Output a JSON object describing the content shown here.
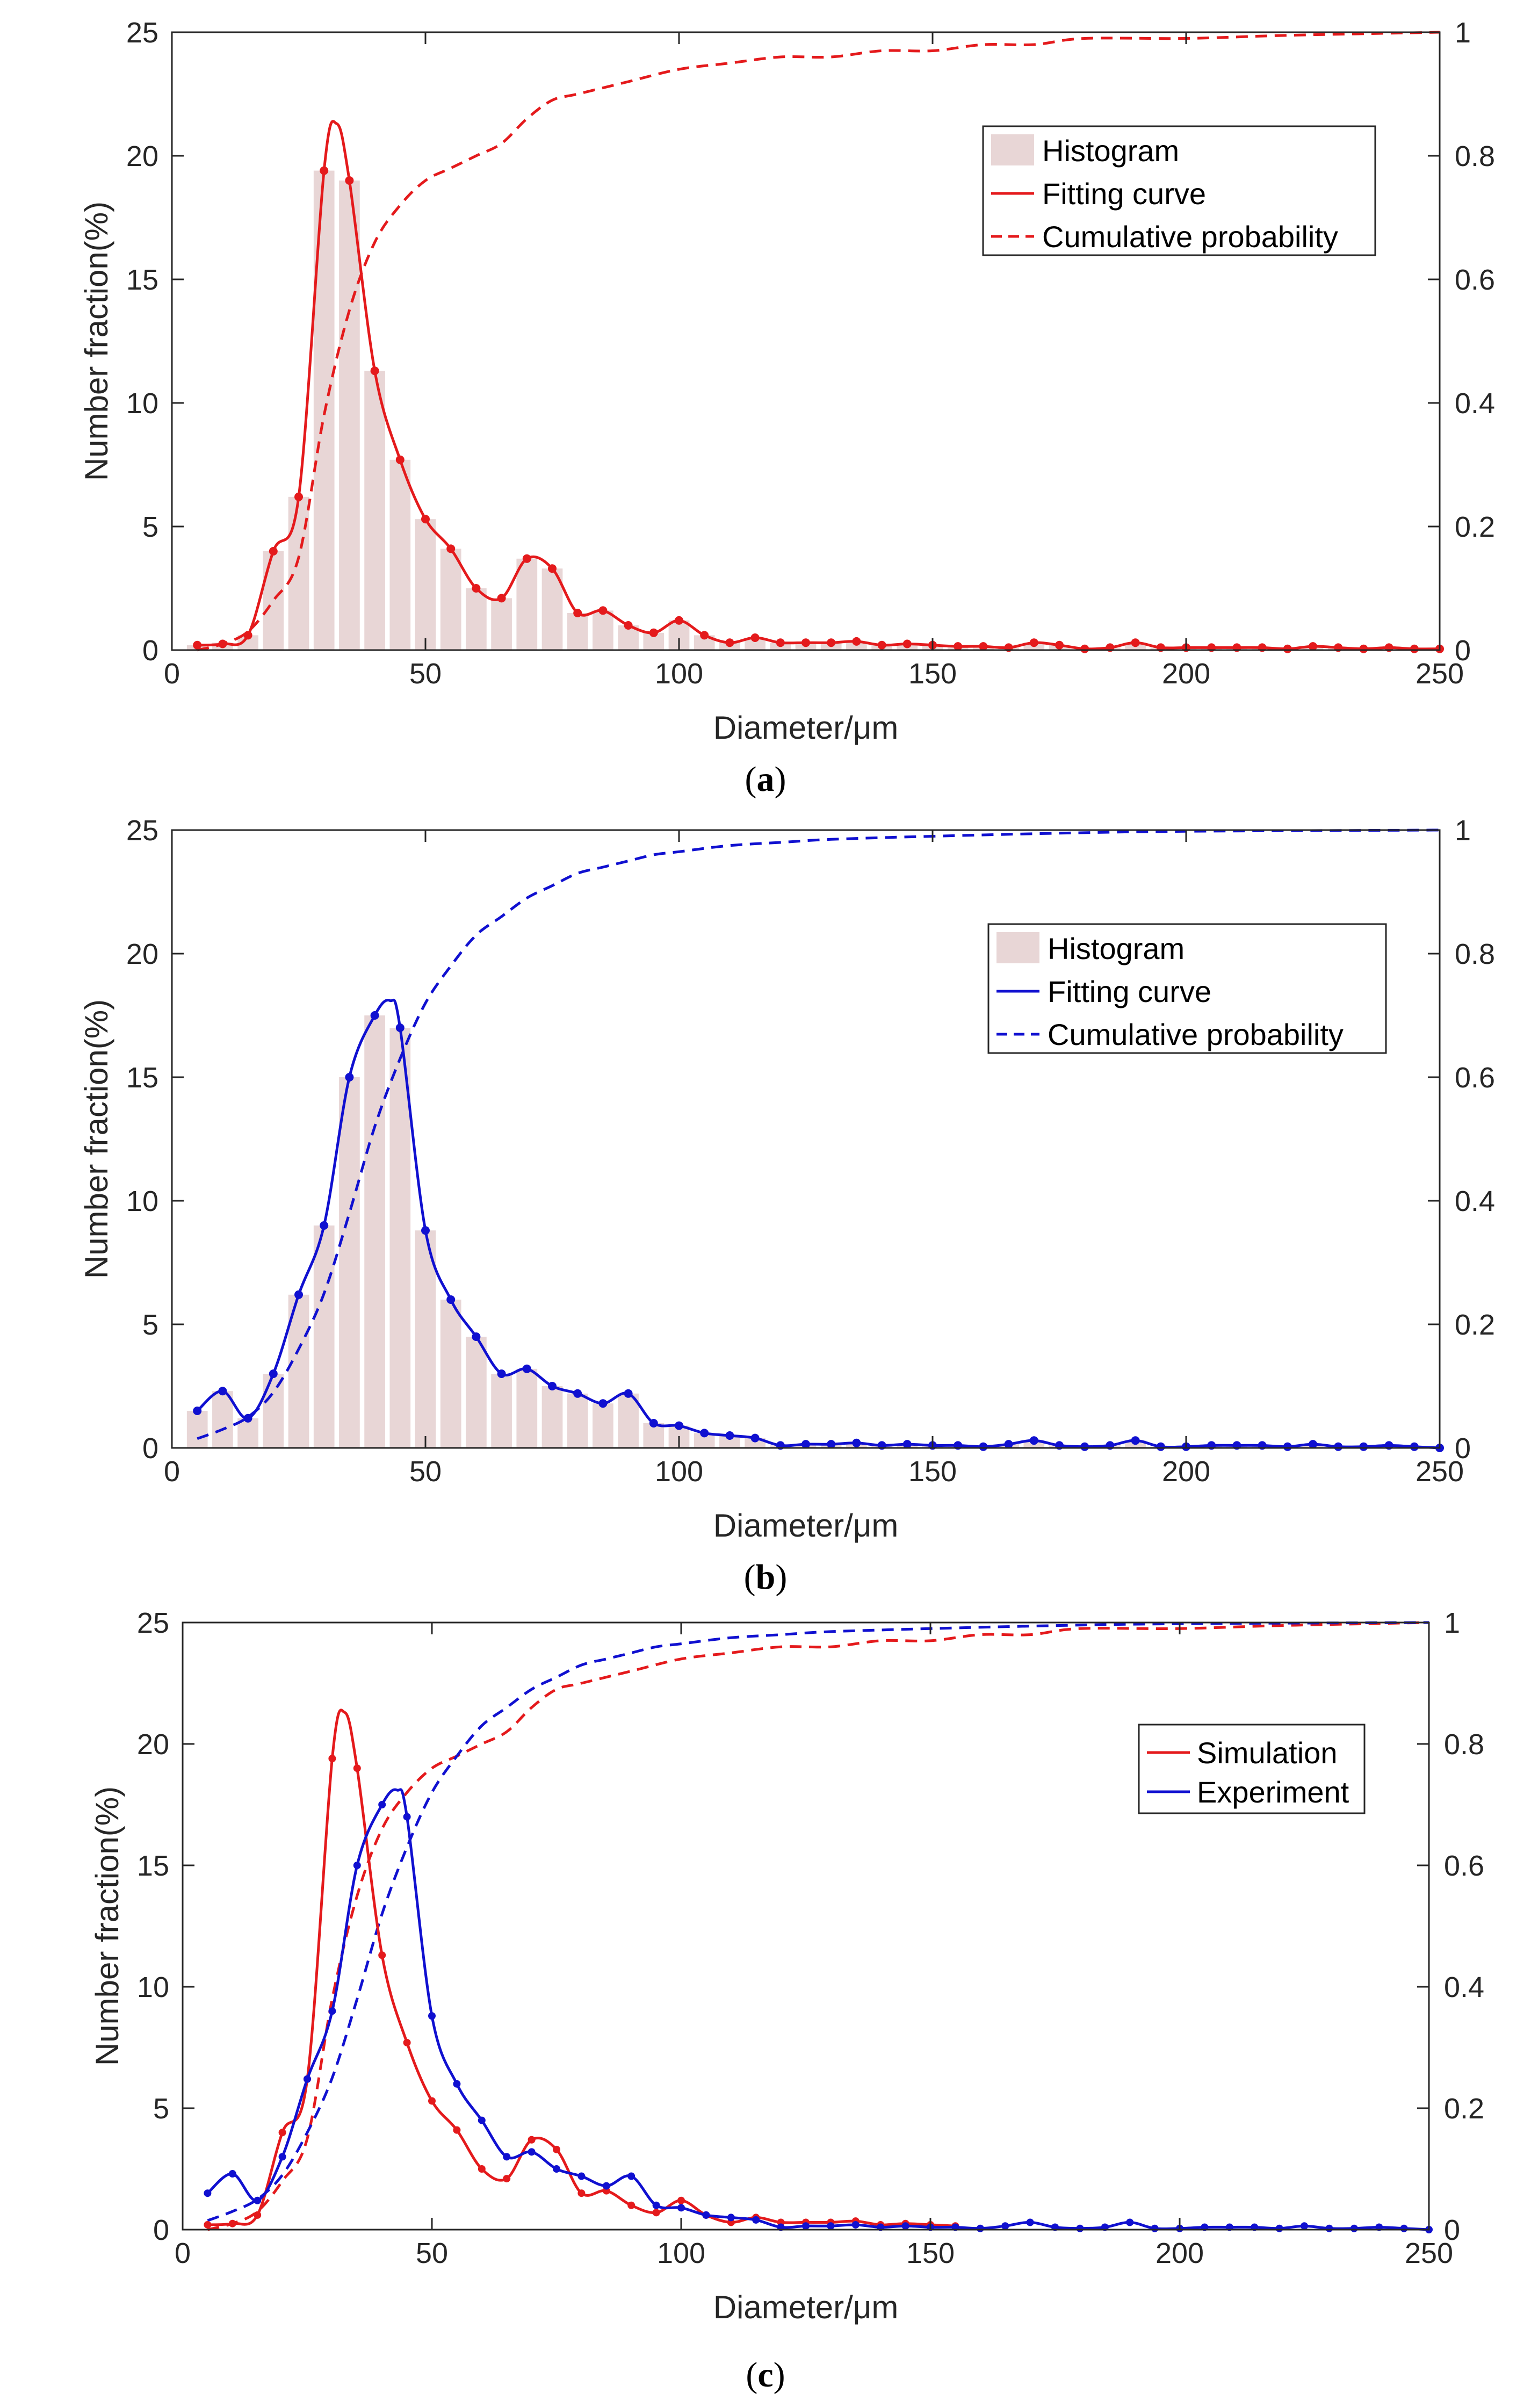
{
  "colors": {
    "simulation": "#e41a1c",
    "experiment": "#1010d0",
    "histogram": "#e8d6d6",
    "axis": "#262626"
  },
  "chart_data": [
    {
      "type": "bar+line",
      "panel": "(a)",
      "panel_open": "(",
      "panel_letter": "a",
      "panel_close": ")",
      "xlabel": "Diameter/μm",
      "ylabel": "Number fraction(%)",
      "xlim": [
        0,
        250
      ],
      "ylim": [
        0,
        25
      ],
      "y2lim": [
        0,
        1
      ],
      "xticks": [
        "0",
        "50",
        "100",
        "150",
        "200",
        "250"
      ],
      "yticks": [
        "0",
        "5",
        "10",
        "15",
        "20",
        "25"
      ],
      "y2ticks": [
        "0",
        "0.2",
        "0.4",
        "0.6",
        "0.8",
        "1"
      ],
      "legend": [
        "Histogram",
        "Fitting curve",
        "Cumulative probability"
      ],
      "series_color": "simulation",
      "histogram": {
        "x": [
          5,
          10,
          15,
          20,
          25,
          30,
          35,
          40,
          45,
          50,
          55,
          60,
          65,
          70,
          75,
          80,
          85,
          90,
          95,
          100,
          105,
          110,
          115,
          120,
          125,
          130,
          135,
          140,
          145,
          150,
          155,
          160,
          165,
          170,
          175,
          180,
          185,
          190,
          195,
          200,
          205,
          210,
          215,
          220,
          225,
          230,
          235,
          240,
          245
        ],
        "values": [
          0.2,
          0.3,
          0.6,
          4.0,
          6.2,
          19.4,
          19.0,
          11.3,
          7.7,
          5.3,
          4.1,
          2.5,
          2.1,
          3.7,
          3.3,
          1.5,
          1.6,
          1.0,
          0.7,
          1.2,
          0.6,
          0.3,
          0.5,
          0.3,
          0.3,
          0.3,
          0.3,
          0.2,
          0.2,
          0.2,
          0.15,
          0.15,
          0.1,
          0.3,
          0.2,
          0.05,
          0.1,
          0.3,
          0.1,
          0.1,
          0.1,
          0.1,
          0.1,
          0.05,
          0.15,
          0.1,
          0.05,
          0.1,
          0.05
        ]
      },
      "fitting_points": {
        "x": [
          5,
          10,
          15,
          20,
          25,
          30,
          35,
          40,
          45,
          50,
          55,
          60,
          65,
          70,
          75,
          80,
          85,
          90,
          95,
          100,
          105,
          110,
          115,
          120,
          125,
          130,
          135,
          140,
          145,
          150,
          155,
          160,
          165,
          170,
          175,
          180,
          185,
          190,
          195,
          200,
          205,
          210,
          215,
          220,
          225,
          230,
          235,
          240,
          245,
          250
        ],
        "y": [
          0.2,
          0.25,
          0.6,
          4.0,
          6.2,
          19.4,
          19.0,
          11.3,
          7.7,
          5.3,
          4.1,
          2.5,
          2.1,
          3.7,
          3.3,
          1.5,
          1.6,
          1.0,
          0.7,
          1.2,
          0.6,
          0.3,
          0.5,
          0.3,
          0.3,
          0.3,
          0.35,
          0.2,
          0.25,
          0.2,
          0.15,
          0.15,
          0.1,
          0.3,
          0.2,
          0.05,
          0.1,
          0.3,
          0.1,
          0.1,
          0.1,
          0.1,
          0.1,
          0.05,
          0.15,
          0.1,
          0.05,
          0.1,
          0.05,
          0.05
        ]
      },
      "fitting_peak": [
        32.5,
        21.3
      ],
      "cumulative": {
        "x": [
          5,
          10,
          15,
          20,
          25,
          30,
          35,
          40,
          45,
          50,
          55,
          60,
          65,
          70,
          75,
          80,
          90,
          100,
          110,
          120,
          130,
          140,
          150,
          160,
          170,
          180,
          200,
          220,
          250
        ],
        "y": [
          0.0,
          0.01,
          0.03,
          0.08,
          0.15,
          0.38,
          0.55,
          0.66,
          0.72,
          0.76,
          0.78,
          0.8,
          0.82,
          0.86,
          0.89,
          0.9,
          0.92,
          0.94,
          0.95,
          0.96,
          0.96,
          0.97,
          0.97,
          0.98,
          0.98,
          0.99,
          0.99,
          0.995,
          1.0
        ]
      }
    },
    {
      "type": "bar+line",
      "panel": "(b)",
      "panel_open": "(",
      "panel_letter": "b",
      "panel_close": ")",
      "xlabel": "Diameter/μm",
      "ylabel": "Number fraction(%)",
      "xlim": [
        0,
        250
      ],
      "ylim": [
        0,
        25
      ],
      "y2lim": [
        0,
        1
      ],
      "xticks": [
        "0",
        "50",
        "100",
        "150",
        "200",
        "250"
      ],
      "yticks": [
        "0",
        "5",
        "10",
        "15",
        "20",
        "25"
      ],
      "y2ticks": [
        "0",
        "0.2",
        "0.4",
        "0.6",
        "0.8",
        "1"
      ],
      "legend": [
        "Histogram",
        "Fitting curve",
        "Cumulative probability"
      ],
      "series_color": "experiment",
      "histogram": {
        "x": [
          5,
          10,
          15,
          20,
          25,
          30,
          35,
          40,
          45,
          50,
          55,
          60,
          65,
          70,
          75,
          80,
          85,
          90,
          95,
          100,
          105,
          110,
          115,
          120,
          125,
          130,
          135,
          140,
          145,
          150,
          155,
          160,
          165,
          170,
          175,
          180,
          185,
          190,
          195,
          200,
          205,
          210,
          215,
          220,
          225,
          230,
          235,
          240,
          245
        ],
        "values": [
          1.5,
          2.3,
          1.2,
          3.0,
          6.2,
          9.0,
          15.0,
          17.5,
          17.0,
          8.8,
          6.0,
          4.5,
          3.0,
          3.2,
          2.5,
          2.2,
          1.8,
          2.2,
          1.0,
          0.9,
          0.6,
          0.5,
          0.4,
          0.1,
          0.15,
          0.15,
          0.2,
          0.1,
          0.15,
          0.1,
          0.1,
          0.05,
          0.15,
          0.3,
          0.1,
          0.05,
          0.1,
          0.3,
          0.05,
          0.05,
          0.1,
          0.1,
          0.1,
          0.05,
          0.15,
          0.05,
          0.05,
          0.1,
          0.05
        ]
      },
      "fitting_points": {
        "x": [
          5,
          10,
          15,
          20,
          25,
          30,
          35,
          40,
          45,
          50,
          55,
          60,
          65,
          70,
          75,
          80,
          85,
          90,
          95,
          100,
          105,
          110,
          115,
          120,
          125,
          130,
          135,
          140,
          145,
          150,
          155,
          160,
          165,
          170,
          175,
          180,
          185,
          190,
          195,
          200,
          205,
          210,
          215,
          220,
          225,
          230,
          235,
          240,
          245,
          250
        ],
        "y": [
          1.5,
          2.3,
          1.2,
          3.0,
          6.2,
          9.0,
          15.0,
          17.5,
          17.0,
          8.8,
          6.0,
          4.5,
          3.0,
          3.2,
          2.5,
          2.2,
          1.8,
          2.2,
          1.0,
          0.9,
          0.6,
          0.5,
          0.4,
          0.1,
          0.15,
          0.15,
          0.2,
          0.1,
          0.15,
          0.1,
          0.1,
          0.05,
          0.15,
          0.3,
          0.1,
          0.05,
          0.1,
          0.3,
          0.05,
          0.05,
          0.1,
          0.1,
          0.1,
          0.05,
          0.15,
          0.05,
          0.05,
          0.1,
          0.05,
          0.0
        ]
      },
      "fitting_peak": [
        43,
        18.1
      ],
      "cumulative": {
        "x": [
          5,
          10,
          15,
          20,
          25,
          30,
          35,
          40,
          45,
          50,
          55,
          60,
          65,
          70,
          75,
          80,
          85,
          90,
          95,
          100,
          110,
          120,
          130,
          150,
          175,
          200,
          250
        ],
        "y": [
          0.015,
          0.03,
          0.05,
          0.09,
          0.16,
          0.25,
          0.38,
          0.52,
          0.63,
          0.72,
          0.78,
          0.83,
          0.86,
          0.89,
          0.91,
          0.93,
          0.94,
          0.95,
          0.96,
          0.965,
          0.975,
          0.98,
          0.985,
          0.99,
          0.995,
          0.998,
          1.0
        ]
      }
    },
    {
      "type": "line",
      "panel": "(c)",
      "panel_open": "(",
      "panel_letter": "c",
      "panel_close": ")",
      "xlabel": "Diameter/μm",
      "ylabel": "Number fraction(%)",
      "xlim": [
        0,
        250
      ],
      "ylim": [
        0,
        25
      ],
      "y2lim": [
        0,
        1
      ],
      "xticks": [
        "0",
        "50",
        "100",
        "150",
        "200",
        "250"
      ],
      "yticks": [
        "0",
        "5",
        "10",
        "15",
        "20",
        "25"
      ],
      "y2ticks": [
        "0",
        "0.2",
        "0.4",
        "0.6",
        "0.8",
        "1"
      ],
      "legend": [
        "Simulation",
        "Experiment"
      ],
      "series": [
        {
          "name": "Simulation",
          "color": "simulation",
          "x": [
            5,
            10,
            15,
            20,
            25,
            30,
            35,
            40,
            45,
            50,
            55,
            60,
            65,
            70,
            75,
            80,
            85,
            90,
            95,
            100,
            105,
            110,
            115,
            120,
            125,
            130,
            135,
            140,
            145,
            150,
            155
          ],
          "y": [
            0.2,
            0.25,
            0.6,
            4.0,
            6.2,
            19.4,
            19.0,
            11.3,
            7.7,
            5.3,
            4.1,
            2.5,
            2.1,
            3.7,
            3.3,
            1.5,
            1.6,
            1.0,
            0.7,
            1.2,
            0.6,
            0.3,
            0.5,
            0.3,
            0.3,
            0.3,
            0.35,
            0.2,
            0.25,
            0.2,
            0.15
          ],
          "peak": [
            32.5,
            21.3
          ],
          "cumulative_x": [
            5,
            10,
            15,
            20,
            25,
            30,
            35,
            40,
            45,
            50,
            55,
            60,
            65,
            70,
            75,
            80,
            90,
            100,
            110,
            120,
            130,
            140,
            150,
            160,
            170,
            180,
            200,
            220,
            250
          ],
          "cumulative_y": [
            0.0,
            0.01,
            0.03,
            0.08,
            0.15,
            0.38,
            0.55,
            0.66,
            0.72,
            0.76,
            0.78,
            0.8,
            0.82,
            0.86,
            0.89,
            0.9,
            0.92,
            0.94,
            0.95,
            0.96,
            0.96,
            0.97,
            0.97,
            0.98,
            0.98,
            0.99,
            0.99,
            0.995,
            1.0
          ]
        },
        {
          "name": "Experiment",
          "color": "experiment",
          "x": [
            5,
            10,
            15,
            20,
            25,
            30,
            35,
            40,
            45,
            50,
            55,
            60,
            65,
            70,
            75,
            80,
            85,
            90,
            95,
            100,
            105,
            110,
            115,
            120,
            125,
            130,
            135,
            140,
            145,
            150,
            155,
            160,
            165,
            170,
            175,
            180,
            185,
            190,
            195,
            200,
            205,
            210,
            215,
            220,
            225,
            230,
            235,
            240,
            245,
            250
          ],
          "y": [
            1.5,
            2.3,
            1.2,
            3.0,
            6.2,
            9.0,
            15.0,
            17.5,
            17.0,
            8.8,
            6.0,
            4.5,
            3.0,
            3.2,
            2.5,
            2.2,
            1.8,
            2.2,
            1.0,
            0.9,
            0.6,
            0.5,
            0.4,
            0.1,
            0.15,
            0.15,
            0.2,
            0.1,
            0.15,
            0.1,
            0.1,
            0.05,
            0.15,
            0.3,
            0.1,
            0.05,
            0.1,
            0.3,
            0.05,
            0.05,
            0.1,
            0.1,
            0.1,
            0.05,
            0.15,
            0.05,
            0.05,
            0.1,
            0.05,
            0.0
          ],
          "peak": [
            43,
            18.1
          ],
          "cumulative_x": [
            5,
            10,
            15,
            20,
            25,
            30,
            35,
            40,
            45,
            50,
            55,
            60,
            65,
            70,
            75,
            80,
            85,
            90,
            95,
            100,
            110,
            120,
            130,
            150,
            175,
            200,
            250
          ],
          "cumulative_y": [
            0.015,
            0.03,
            0.05,
            0.09,
            0.16,
            0.25,
            0.38,
            0.52,
            0.63,
            0.72,
            0.78,
            0.83,
            0.86,
            0.89,
            0.91,
            0.93,
            0.94,
            0.95,
            0.96,
            0.965,
            0.975,
            0.98,
            0.985,
            0.99,
            0.995,
            0.998,
            1.0
          ]
        }
      ]
    }
  ]
}
